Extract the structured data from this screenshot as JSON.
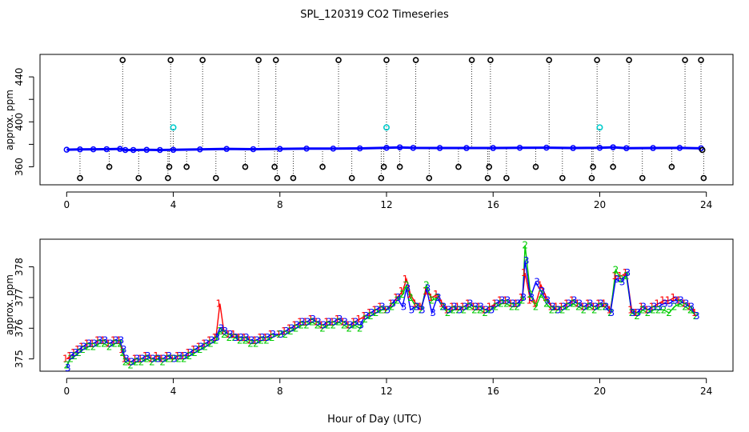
{
  "page": {
    "title": "SPL_120319  CO2 Timeseries",
    "xlabel": "Hour of Day (UTC)"
  },
  "chart_data": [
    {
      "type": "scatter",
      "ylabel": "approx. ppm",
      "xlim": [
        -1,
        25
      ],
      "ylim": [
        344,
        460
      ],
      "x_ticks": [
        0,
        4,
        8,
        12,
        16,
        20,
        24
      ],
      "y_ticks": [
        360,
        400,
        440
      ],
      "y_minor_ticks": [
        380,
        420
      ],
      "grid": false,
      "colors": {
        "main": "#0000ff",
        "flag": "#000000",
        "cal": "#00cccc"
      },
      "main_series": {
        "name": "",
        "x": [
          0,
          0.5,
          1,
          1.5,
          2,
          2.2,
          2.5,
          3,
          3.5,
          4,
          5,
          6,
          7,
          8,
          9,
          10,
          11,
          12,
          12.5,
          13,
          14,
          15,
          16,
          17,
          18,
          19,
          20,
          20.5,
          21,
          22,
          23,
          23.8
        ],
        "y": [
          375.2,
          375.5,
          375.6,
          375.7,
          375.9,
          375.0,
          375.0,
          375.1,
          375.0,
          375.1,
          375.5,
          375.9,
          375.7,
          375.9,
          376.2,
          376.2,
          376.4,
          376.9,
          377.3,
          376.8,
          376.7,
          376.7,
          376.7,
          376.9,
          377.0,
          376.7,
          376.9,
          377.4,
          376.6,
          376.7,
          376.8,
          376.5
        ]
      },
      "flag_points": {
        "x": [
          0.5,
          1.6,
          2.1,
          2.7,
          3.8,
          3.85,
          3.9,
          4.5,
          5.1,
          5.6,
          6.7,
          7.2,
          7.8,
          7.85,
          7.9,
          8.5,
          9.6,
          10.2,
          10.7,
          11.8,
          11.9,
          12.0,
          12.5,
          13.1,
          13.6,
          14.7,
          15.2,
          15.8,
          15.85,
          15.9,
          16.5,
          17.6,
          18.1,
          18.6,
          19.7,
          19.75,
          19.9,
          20.5,
          21.1,
          21.6,
          22.7,
          23.2,
          23.8,
          23.85,
          23.9
        ],
        "y": [
          350,
          360,
          455,
          350,
          350,
          360,
          455,
          360,
          455,
          350,
          360,
          455,
          360,
          455,
          350,
          350,
          360,
          455,
          350,
          350,
          360,
          455,
          360,
          455,
          350,
          360,
          455,
          350,
          360,
          455,
          350,
          360,
          455,
          350,
          350,
          360,
          455,
          360,
          455,
          350,
          360,
          455,
          455,
          375,
          350
        ]
      },
      "cal_points": {
        "x": [
          4.0,
          12.0,
          20.0
        ],
        "y": [
          395,
          395,
          395
        ]
      }
    },
    {
      "type": "line",
      "ylabel": "approx. ppm",
      "xlim": [
        -1,
        25
      ],
      "ylim": [
        374.6,
        378.9
      ],
      "x_ticks": [
        0,
        4,
        8,
        12,
        16,
        20,
        24
      ],
      "y_ticks": [
        375,
        376,
        377,
        378
      ],
      "grid": false,
      "series": [
        {
          "name": "",
          "marker": "1",
          "color": "#ff0000",
          "x": [
            0,
            0.15,
            0.3,
            0.45,
            0.6,
            0.8,
            1.0,
            1.2,
            1.4,
            1.6,
            1.8,
            2.0,
            2.1,
            2.2,
            2.4,
            2.6,
            2.8,
            3.0,
            3.2,
            3.4,
            3.6,
            3.8,
            4.0,
            4.2,
            4.4,
            4.6,
            4.8,
            5.0,
            5.2,
            5.4,
            5.6,
            5.75,
            5.9,
            6.1,
            6.3,
            6.5,
            6.7,
            6.9,
            7.1,
            7.3,
            7.5,
            7.7,
            8.0,
            8.2,
            8.4,
            8.6,
            8.8,
            9.0,
            9.2,
            9.4,
            9.6,
            9.8,
            10.0,
            10.2,
            10.4,
            10.6,
            10.8,
            11.0,
            11.2,
            11.4,
            11.6,
            11.8,
            12.0,
            12.2,
            12.4,
            12.6,
            12.75,
            12.9,
            13.1,
            13.3,
            13.5,
            13.7,
            13.9,
            14.1,
            14.3,
            14.5,
            14.7,
            14.9,
            15.1,
            15.3,
            15.5,
            15.7,
            15.9,
            16.1,
            16.3,
            16.5,
            16.7,
            16.9,
            17.1,
            17.2,
            17.4,
            17.6,
            17.8,
            18.0,
            18.2,
            18.4,
            18.6,
            18.8,
            19.0,
            19.2,
            19.4,
            19.6,
            19.8,
            20.0,
            20.2,
            20.4,
            20.6,
            20.8,
            21.0,
            21.2,
            21.4,
            21.6,
            21.8,
            22.0,
            22.2,
            22.4,
            22.6,
            22.8,
            23.0,
            23.2,
            23.4,
            23.6
          ],
          "y": [
            375.0,
            375.1,
            375.2,
            375.3,
            375.4,
            375.5,
            375.5,
            375.6,
            375.6,
            375.5,
            375.6,
            375.6,
            375.3,
            375.0,
            374.9,
            375.0,
            375.0,
            375.1,
            375.0,
            375.1,
            375.0,
            375.1,
            375.0,
            375.1,
            375.1,
            375.2,
            375.3,
            375.4,
            375.5,
            375.6,
            375.7,
            376.8,
            375.9,
            375.8,
            375.8,
            375.7,
            375.7,
            375.6,
            375.6,
            375.7,
            375.7,
            375.8,
            375.8,
            375.9,
            376.0,
            376.1,
            376.2,
            376.2,
            376.3,
            376.2,
            376.1,
            376.2,
            376.2,
            376.3,
            376.2,
            376.1,
            376.2,
            376.3,
            376.4,
            376.5,
            376.6,
            376.7,
            376.6,
            376.8,
            377.0,
            377.2,
            377.6,
            377.1,
            376.8,
            376.7,
            377.2,
            377.0,
            377.1,
            376.8,
            376.6,
            376.7,
            376.7,
            376.7,
            376.8,
            376.7,
            376.7,
            376.6,
            376.7,
            376.8,
            376.9,
            376.9,
            376.8,
            376.8,
            377.0,
            377.8,
            376.9,
            376.8,
            377.4,
            377.0,
            376.7,
            376.7,
            376.7,
            376.8,
            376.9,
            376.8,
            376.7,
            376.8,
            376.7,
            376.8,
            376.8,
            376.6,
            377.7,
            377.7,
            377.8,
            376.6,
            376.5,
            376.7,
            376.6,
            376.7,
            376.8,
            376.9,
            376.9,
            377.0,
            376.9,
            376.8,
            376.7,
            376.5
          ]
        },
        {
          "name": "",
          "marker": "2",
          "color": "#00cc00",
          "x": [
            0,
            0.15,
            0.3,
            0.45,
            0.6,
            0.8,
            1.0,
            1.2,
            1.4,
            1.6,
            1.8,
            2.0,
            2.1,
            2.2,
            2.4,
            2.6,
            2.8,
            3.0,
            3.2,
            3.4,
            3.6,
            3.8,
            4.0,
            4.2,
            4.4,
            4.6,
            4.8,
            5.0,
            5.2,
            5.4,
            5.6,
            5.75,
            5.9,
            6.1,
            6.3,
            6.5,
            6.7,
            6.9,
            7.1,
            7.3,
            7.5,
            7.7,
            8.0,
            8.2,
            8.4,
            8.6,
            8.8,
            9.0,
            9.2,
            9.4,
            9.6,
            9.8,
            10.0,
            10.2,
            10.4,
            10.6,
            10.8,
            11.0,
            11.2,
            11.4,
            11.6,
            11.8,
            12.0,
            12.2,
            12.4,
            12.6,
            12.75,
            12.9,
            13.1,
            13.3,
            13.5,
            13.7,
            13.9,
            14.1,
            14.3,
            14.5,
            14.7,
            14.9,
            15.1,
            15.3,
            15.5,
            15.7,
            15.9,
            16.1,
            16.3,
            16.5,
            16.7,
            16.9,
            17.1,
            17.2,
            17.4,
            17.6,
            17.8,
            18.0,
            18.2,
            18.4,
            18.6,
            18.8,
            19.0,
            19.2,
            19.4,
            19.6,
            19.8,
            20.0,
            20.2,
            20.4,
            20.6,
            20.8,
            21.0,
            21.2,
            21.4,
            21.6,
            21.8,
            22.0,
            22.2,
            22.4,
            22.6,
            22.8,
            23.0,
            23.2,
            23.4,
            23.6
          ],
          "y": [
            374.8,
            375.0,
            375.1,
            375.2,
            375.3,
            375.4,
            375.4,
            375.5,
            375.5,
            375.4,
            375.5,
            375.5,
            375.2,
            374.9,
            374.8,
            374.9,
            374.9,
            375.0,
            374.9,
            375.0,
            374.9,
            375.0,
            375.0,
            375.0,
            375.0,
            375.1,
            375.2,
            375.3,
            375.4,
            375.5,
            375.6,
            375.9,
            375.8,
            375.7,
            375.7,
            375.6,
            375.6,
            375.5,
            375.5,
            375.6,
            375.6,
            375.7,
            375.8,
            375.8,
            375.9,
            376.0,
            376.1,
            376.1,
            376.2,
            376.1,
            376.0,
            376.1,
            376.1,
            376.2,
            376.1,
            376.0,
            376.1,
            376.0,
            376.3,
            376.4,
            376.5,
            376.6,
            376.6,
            376.7,
            376.9,
            377.1,
            377.4,
            377.0,
            376.7,
            376.6,
            377.4,
            376.9,
            377.0,
            376.7,
            376.5,
            376.6,
            376.6,
            376.6,
            376.7,
            376.6,
            376.6,
            376.5,
            376.6,
            376.7,
            376.8,
            376.8,
            376.7,
            376.7,
            376.9,
            378.7,
            377.1,
            376.7,
            377.1,
            376.8,
            376.6,
            376.6,
            376.6,
            376.7,
            376.8,
            376.7,
            376.6,
            376.7,
            376.6,
            376.7,
            376.7,
            376.5,
            377.9,
            377.6,
            377.7,
            376.5,
            376.4,
            376.6,
            376.5,
            376.6,
            376.6,
            376.6,
            376.5,
            376.7,
            376.8,
            376.7,
            376.6,
            376.4
          ]
        },
        {
          "name": "",
          "marker": "3",
          "color": "#0000ff",
          "x": [
            0,
            0.15,
            0.3,
            0.45,
            0.6,
            0.8,
            1.0,
            1.2,
            1.4,
            1.6,
            1.8,
            2.0,
            2.1,
            2.2,
            2.4,
            2.6,
            2.8,
            3.0,
            3.2,
            3.4,
            3.6,
            3.8,
            4.0,
            4.2,
            4.4,
            4.6,
            4.8,
            5.0,
            5.2,
            5.4,
            5.6,
            5.75,
            5.9,
            6.1,
            6.3,
            6.5,
            6.7,
            6.9,
            7.1,
            7.3,
            7.5,
            7.7,
            8.0,
            8.2,
            8.4,
            8.6,
            8.8,
            9.0,
            9.2,
            9.4,
            9.6,
            9.8,
            10.0,
            10.2,
            10.4,
            10.6,
            10.8,
            11.0,
            11.2,
            11.4,
            11.6,
            11.8,
            12.0,
            12.2,
            12.4,
            12.6,
            12.75,
            12.9,
            13.1,
            13.3,
            13.5,
            13.7,
            13.9,
            14.1,
            14.3,
            14.5,
            14.7,
            14.9,
            15.1,
            15.3,
            15.5,
            15.7,
            15.9,
            16.1,
            16.3,
            16.5,
            16.7,
            16.9,
            17.1,
            17.2,
            17.4,
            17.6,
            17.8,
            18.0,
            18.2,
            18.4,
            18.6,
            18.8,
            19.0,
            19.2,
            19.4,
            19.6,
            19.8,
            20.0,
            20.2,
            20.4,
            20.6,
            20.8,
            21.0,
            21.2,
            21.4,
            21.6,
            21.8,
            22.0,
            22.2,
            22.4,
            22.6,
            22.8,
            23.0,
            23.2,
            23.4,
            23.6
          ],
          "y": [
            374.7,
            375.1,
            375.2,
            375.3,
            375.4,
            375.5,
            375.5,
            375.6,
            375.6,
            375.5,
            375.6,
            375.6,
            375.3,
            375.0,
            374.9,
            375.0,
            375.0,
            375.1,
            375.0,
            375.0,
            375.0,
            375.1,
            375.0,
            375.1,
            375.1,
            375.2,
            375.3,
            375.4,
            375.5,
            375.6,
            375.7,
            376.0,
            375.9,
            375.8,
            375.7,
            375.7,
            375.7,
            375.6,
            375.6,
            375.7,
            375.7,
            375.8,
            375.8,
            375.9,
            376.0,
            376.1,
            376.2,
            376.2,
            376.3,
            376.2,
            376.1,
            376.2,
            376.2,
            376.3,
            376.2,
            376.1,
            376.2,
            376.1,
            376.4,
            376.5,
            376.6,
            376.7,
            376.6,
            376.8,
            377.0,
            376.7,
            377.3,
            376.6,
            376.7,
            376.6,
            377.3,
            376.5,
            377.0,
            376.7,
            376.6,
            376.7,
            376.6,
            376.7,
            376.8,
            376.7,
            376.7,
            376.6,
            376.6,
            376.8,
            376.9,
            376.9,
            376.8,
            376.8,
            377.0,
            378.2,
            377.0,
            377.5,
            377.2,
            376.9,
            376.7,
            376.6,
            376.7,
            376.8,
            376.9,
            376.8,
            376.7,
            376.8,
            376.7,
            376.8,
            376.7,
            376.5,
            377.6,
            377.5,
            377.8,
            376.5,
            376.5,
            376.7,
            376.6,
            376.7,
            376.7,
            376.8,
            376.8,
            376.9,
            376.9,
            376.8,
            376.7,
            376.4
          ]
        }
      ]
    }
  ]
}
